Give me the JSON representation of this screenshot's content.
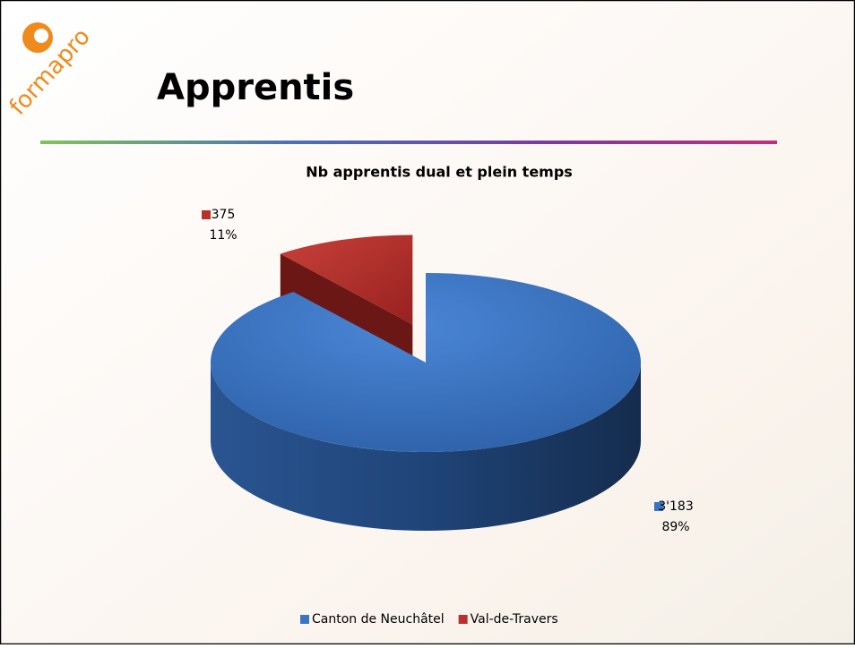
{
  "slide": {
    "title": "Apprentis",
    "logo": "formapro"
  },
  "chart_data": {
    "type": "pie3d",
    "title": "Nb apprentis dual et plein temps",
    "categories": [
      "Canton de Neuchâtel",
      "Val-de-Travers"
    ],
    "values": [
      3183,
      375
    ],
    "value_labels": [
      "3'183",
      "375"
    ],
    "percent_labels": [
      "89%",
      "11%"
    ],
    "colors": [
      "#3a75c3",
      "#b8312d"
    ],
    "exploded": [
      false,
      true
    ]
  }
}
